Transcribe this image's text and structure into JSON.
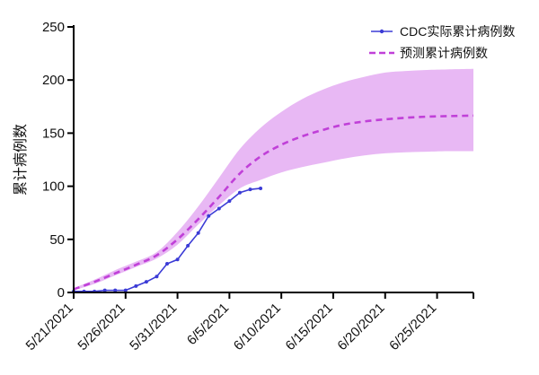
{
  "chart_data": {
    "type": "line",
    "title": "",
    "xlabel": "",
    "ylabel": "累计病例数",
    "ylim": [
      0,
      250
    ],
    "yticks": [
      0,
      50,
      100,
      150,
      200,
      250
    ],
    "x_start_date": "5/21/2021",
    "x_range_days": [
      0,
      38.5
    ],
    "xtick_days": [
      0,
      5,
      10,
      15,
      20,
      25,
      30,
      35
    ],
    "xtick_labels": [
      "5/21/2021",
      "5/26/2021",
      "5/31/2021",
      "6/5/2021",
      "6/10/2021",
      "6/15/2021",
      "6/20/2021",
      "6/25/2021"
    ],
    "legend_position": "top-right",
    "colors": {
      "actual": "#3b3bd6",
      "predicted": "#c040d8",
      "band": "#e8b8f4",
      "axis": "#000000"
    },
    "series": [
      {
        "name": "CDC实际累计病例数",
        "style": "solid-with-markers",
        "days": [
          0,
          1,
          2,
          3,
          4,
          5,
          6,
          7,
          8,
          9,
          10,
          11,
          12,
          13,
          14,
          15,
          16,
          17,
          18
        ],
        "values": [
          1,
          1,
          1,
          2,
          2,
          2,
          6,
          10,
          15,
          27,
          31,
          44,
          56,
          72,
          79,
          86,
          94,
          97,
          98
        ]
      },
      {
        "name": "预测累计病例数",
        "style": "dashed",
        "days": [
          0,
          2,
          4,
          6,
          8,
          10,
          12,
          14,
          16,
          18,
          20,
          22,
          24,
          26,
          28,
          30,
          32,
          34,
          36,
          38.5
        ],
        "values": [
          3,
          10,
          18,
          26,
          35,
          50,
          69,
          90,
          112,
          128,
          139,
          147,
          153,
          158,
          161,
          163,
          164.5,
          165.5,
          166,
          166.5
        ]
      }
    ],
    "prediction_band": {
      "days": [
        0,
        2,
        4,
        6,
        8,
        10,
        12,
        14,
        16,
        18,
        20,
        22,
        24,
        26,
        28,
        30,
        32,
        34,
        36,
        38.5
      ],
      "lower": [
        2,
        8,
        16,
        24,
        32,
        45,
        64,
        82,
        98,
        106,
        113,
        118,
        122,
        126,
        129,
        131,
        132,
        132.5,
        133,
        133
      ],
      "upper": [
        4,
        12,
        21,
        29,
        38,
        57,
        81,
        108,
        135,
        155,
        170,
        182,
        191,
        198,
        203,
        207,
        208.5,
        209.5,
        210,
        210.5
      ]
    }
  }
}
